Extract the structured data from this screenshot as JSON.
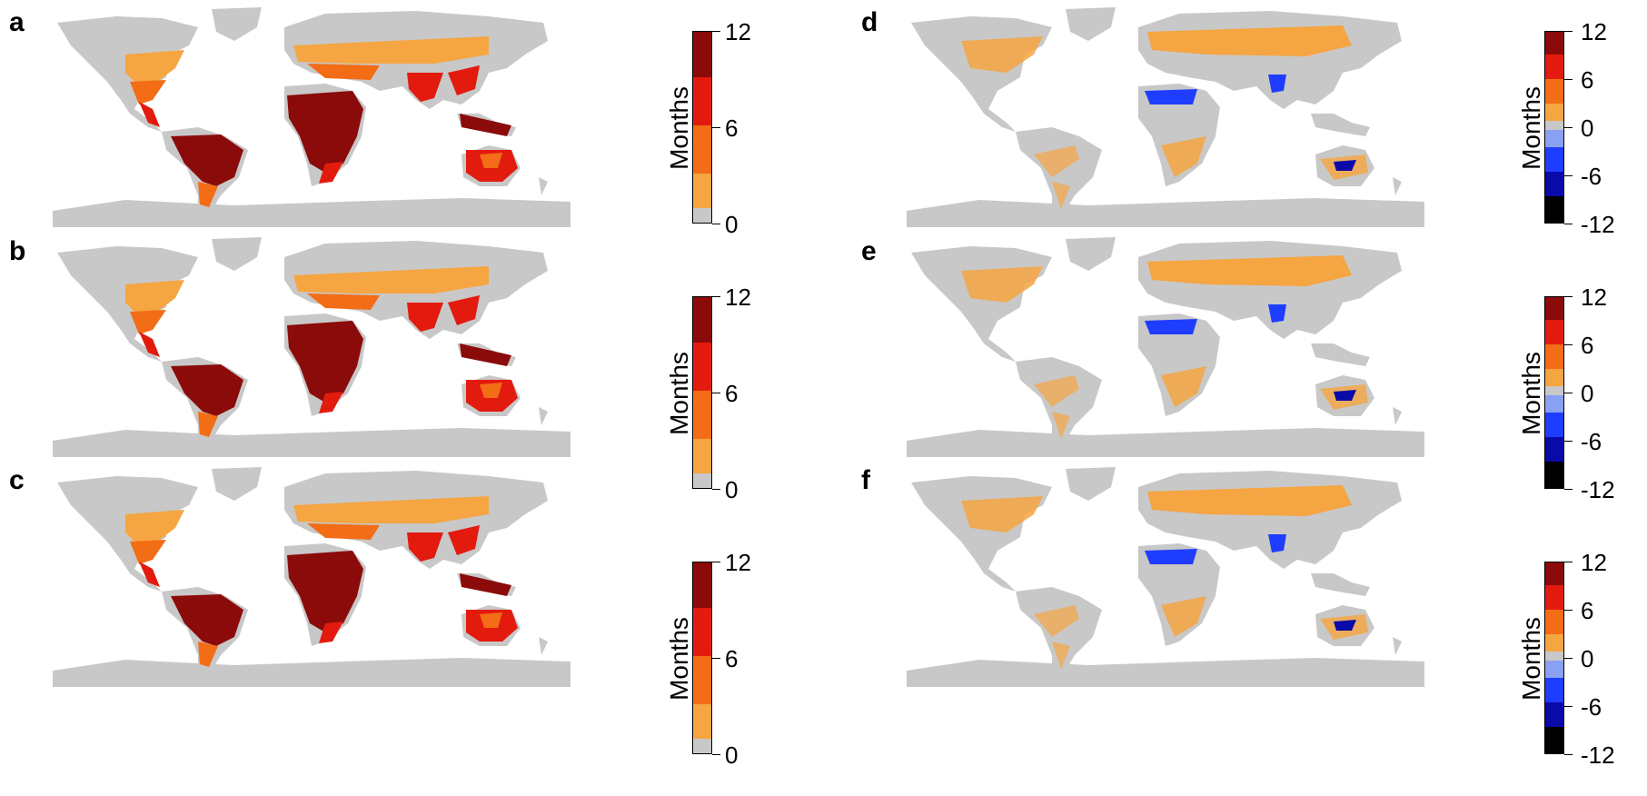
{
  "colors": {
    "land": "#c8c8c8",
    "c2": "#f5a541",
    "c4": "#f26d16",
    "c8": "#e31b0f",
    "c12": "#8b0a0a",
    "neg2": "#8aa0f0",
    "neg4": "#1f3dff",
    "neg8": "#0a0aa8",
    "neg12": "#000000"
  },
  "panels": [
    {
      "letter": "a",
      "legend": "duration",
      "legend_title": "Months",
      "ticks": [
        "12",
        "6",
        "0"
      ]
    },
    {
      "letter": "b",
      "legend": "duration",
      "legend_title": "Months",
      "ticks": [
        "12",
        "6",
        "0"
      ]
    },
    {
      "letter": "c",
      "legend": "duration",
      "legend_title": "Months",
      "ticks": [
        "12",
        "6",
        "0"
      ]
    },
    {
      "letter": "d",
      "legend": "change",
      "legend_title": "Months",
      "ticks": [
        "12",
        "6",
        "0",
        "-6",
        "-12"
      ]
    },
    {
      "letter": "e",
      "legend": "change",
      "legend_title": "Months",
      "ticks": [
        "12",
        "6",
        "0",
        "-6",
        "-12"
      ]
    },
    {
      "letter": "f",
      "legend": "change",
      "legend_title": "Months",
      "ticks": [
        "12",
        "6",
        "0",
        "-6",
        "-12"
      ]
    }
  ]
}
